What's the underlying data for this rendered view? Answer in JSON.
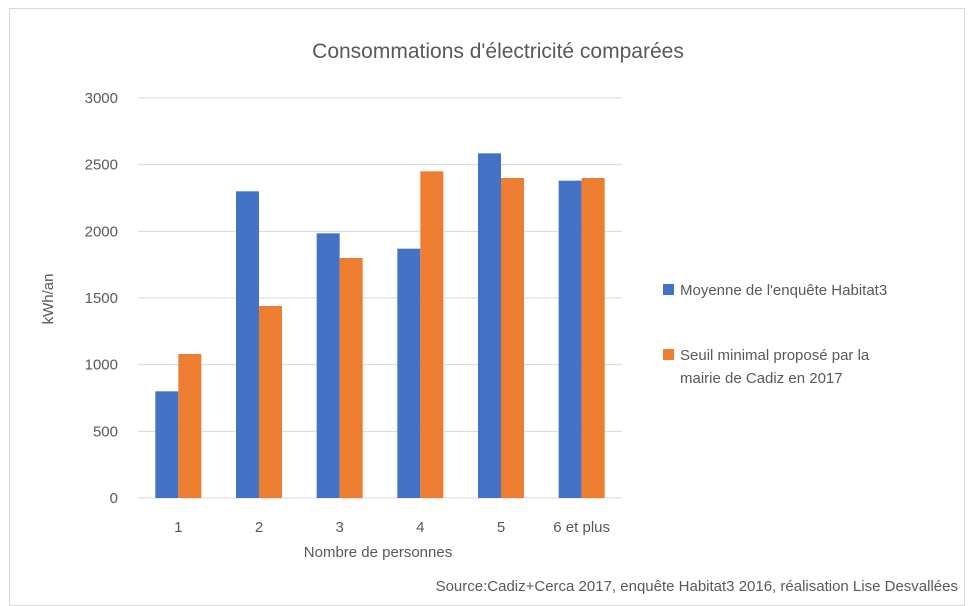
{
  "chart_data": {
    "type": "bar",
    "title": "Consommations d'électricité comparées",
    "xlabel": "Nombre de personnes",
    "ylabel": "kWh/an",
    "ylim": [
      0,
      3000
    ],
    "yticks": [
      0,
      500,
      1000,
      1500,
      2000,
      2500,
      3000
    ],
    "categories": [
      "1",
      "2",
      "3",
      "4",
      "5",
      "6 et plus"
    ],
    "series": [
      {
        "name": "Moyenne de l'enquête Habitat3",
        "color": "#4472c4",
        "values": [
          800,
          2300,
          1985,
          1870,
          2585,
          2380
        ]
      },
      {
        "name": "Seuil minimal proposé par la mairie de Cadiz en 2017",
        "color": "#ed7d31",
        "values": [
          1080,
          1440,
          1800,
          2450,
          2400,
          2400
        ]
      }
    ],
    "grid": true,
    "legend_position": "right",
    "source": "Source:Cadiz+Cerca 2017, enquête Habitat3 2016, réalisation Lise Desvallées"
  }
}
